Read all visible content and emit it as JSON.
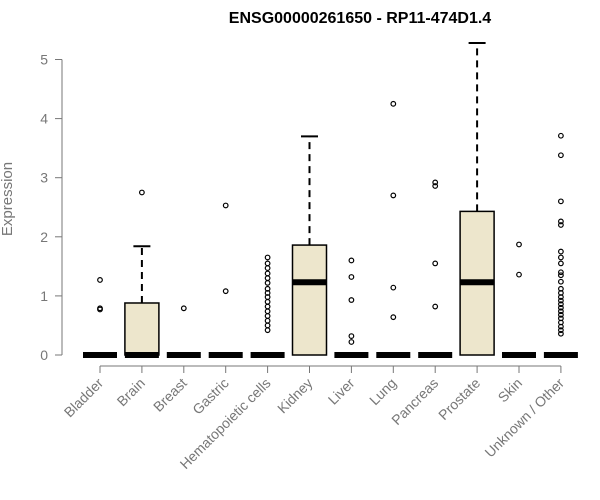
{
  "chart_data": {
    "type": "boxplot",
    "title": "ENSG00000261650 - RP11-474D1.4",
    "xlabel": "",
    "ylabel": "Expression",
    "ylim": [
      0,
      5.3
    ],
    "yticks": [
      "0",
      "1",
      "2",
      "3",
      "4",
      "5"
    ],
    "box_fill": "#ede6cc",
    "categories": [
      "Bladder",
      "Brain",
      "Breast",
      "Gastric",
      "Hematopoietic cells",
      "Kidney",
      "Liver",
      "Lung",
      "Pancreas",
      "Prostate",
      "Skin",
      "Unknown / Other"
    ],
    "boxes": [
      {
        "category": "Bladder",
        "whisker_low": 0,
        "q1": 0,
        "median": 0,
        "q3": 0,
        "whisker_high": 0,
        "outliers": [
          1.27,
          0.79,
          0.77
        ]
      },
      {
        "category": "Brain",
        "whisker_low": 0,
        "q1": 0,
        "median": 0,
        "q3": 0.88,
        "whisker_high": 1.84,
        "outliers": [
          2.75
        ]
      },
      {
        "category": "Breast",
        "whisker_low": 0,
        "q1": 0,
        "median": 0,
        "q3": 0,
        "whisker_high": 0,
        "outliers": [
          0.79
        ]
      },
      {
        "category": "Gastric",
        "whisker_low": 0,
        "q1": 0,
        "median": 0,
        "q3": 0,
        "whisker_high": 0,
        "outliers": [
          2.53,
          1.08
        ]
      },
      {
        "category": "Hematopoietic cells",
        "whisker_low": 0,
        "q1": 0,
        "median": 0,
        "q3": 0,
        "whisker_high": 0,
        "outliers": [
          1.65,
          1.55,
          1.47,
          1.38,
          1.3,
          1.22,
          1.12,
          1.05,
          0.98,
          0.9,
          0.82,
          0.74,
          0.66,
          0.58,
          0.5,
          0.42
        ]
      },
      {
        "category": "Kidney",
        "whisker_low": 0,
        "q1": 0,
        "median": 1.23,
        "q3": 1.86,
        "whisker_high": 3.7,
        "outliers": []
      },
      {
        "category": "Liver",
        "whisker_low": 0,
        "q1": 0,
        "median": 0,
        "q3": 0,
        "whisker_high": 0,
        "outliers": [
          1.6,
          1.32,
          0.93,
          0.32,
          0.22
        ]
      },
      {
        "category": "Lung",
        "whisker_low": 0,
        "q1": 0,
        "median": 0,
        "q3": 0,
        "whisker_high": 0,
        "outliers": [
          4.25,
          2.7,
          1.14,
          0.64
        ]
      },
      {
        "category": "Pancreas",
        "whisker_low": 0,
        "q1": 0,
        "median": 0,
        "q3": 0,
        "whisker_high": 0,
        "outliers": [
          2.92,
          2.86,
          1.55,
          0.82
        ]
      },
      {
        "category": "Prostate",
        "whisker_low": 0,
        "q1": 0,
        "median": 1.23,
        "q3": 2.43,
        "whisker_high": 5.28,
        "outliers": []
      },
      {
        "category": "Skin",
        "whisker_low": 0,
        "q1": 0,
        "median": 0,
        "q3": 0,
        "whisker_high": 0,
        "outliers": [
          1.87,
          1.36
        ]
      },
      {
        "category": "Unknown / Other",
        "whisker_low": 0,
        "q1": 0,
        "median": 0,
        "q3": 0,
        "whisker_high": 0,
        "outliers": [
          3.71,
          3.38,
          2.6,
          2.26,
          2.2,
          1.75,
          1.65,
          1.55,
          1.4,
          1.35,
          1.24,
          1.12,
          1.05,
          0.98,
          0.92,
          0.86,
          0.8,
          0.74,
          0.68,
          0.62,
          0.55,
          0.48,
          0.42,
          0.36
        ]
      }
    ]
  }
}
